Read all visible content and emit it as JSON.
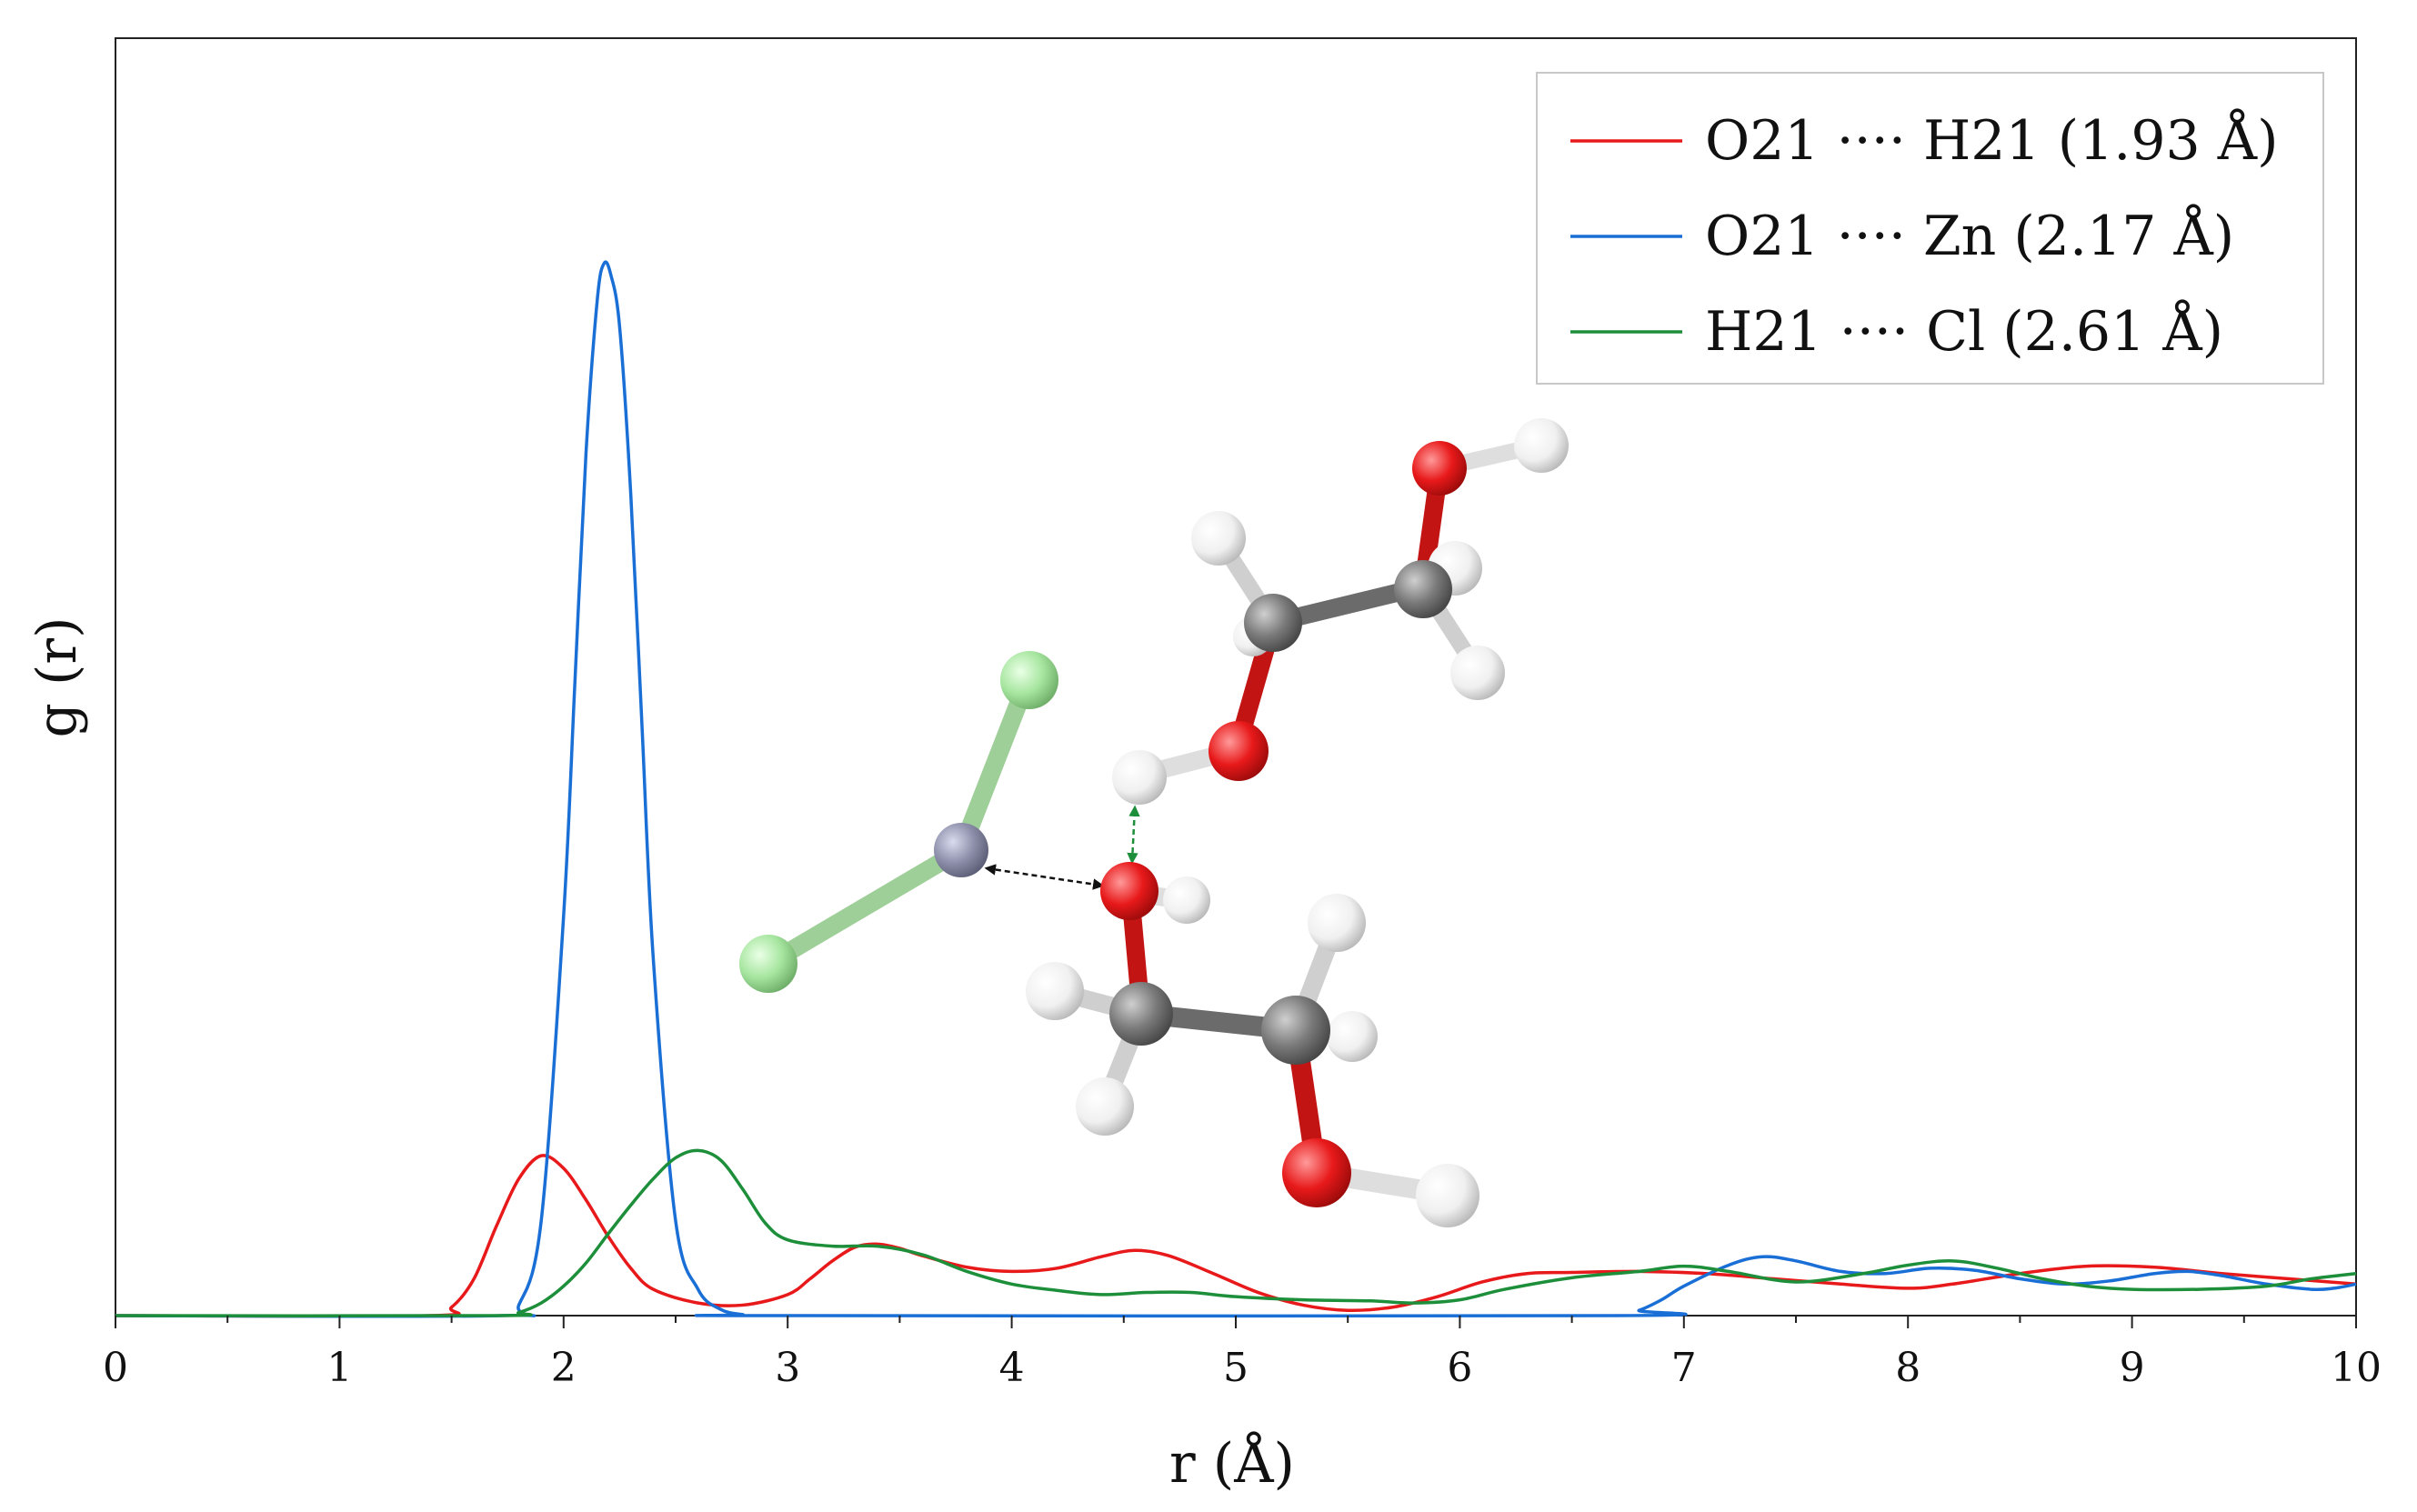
{
  "chart_data": {
    "type": "line",
    "title": "",
    "xlabel": "r (Å)",
    "ylabel": "g (r)",
    "xlim": [
      0,
      10
    ],
    "ylim": [
      0,
      1.0
    ],
    "x_ticks": [
      "0",
      "1",
      "2",
      "3",
      "4",
      "5",
      "6",
      "7",
      "8",
      "9",
      "10"
    ],
    "y_ticks_shown": false,
    "grid": false,
    "legend_position": "top-right",
    "series": [
      {
        "name": "O21 ···· H21 (1.93 Å)",
        "color": "#e8191a",
        "points": [
          [
            0,
            0
          ],
          [
            1.4,
            0
          ],
          [
            1.5,
            0.008
          ],
          [
            1.6,
            0.035
          ],
          [
            1.7,
            0.085
          ],
          [
            1.8,
            0.13
          ],
          [
            1.9,
            0.152
          ],
          [
            2.0,
            0.14
          ],
          [
            2.1,
            0.11
          ],
          [
            2.2,
            0.075
          ],
          [
            2.3,
            0.045
          ],
          [
            2.4,
            0.025
          ],
          [
            2.6,
            0.012
          ],
          [
            2.8,
            0.01
          ],
          [
            3.0,
            0.02
          ],
          [
            3.1,
            0.035
          ],
          [
            3.2,
            0.052
          ],
          [
            3.3,
            0.065
          ],
          [
            3.4,
            0.068
          ],
          [
            3.5,
            0.064
          ],
          [
            3.6,
            0.057
          ],
          [
            3.8,
            0.046
          ],
          [
            4.0,
            0.042
          ],
          [
            4.2,
            0.045
          ],
          [
            4.4,
            0.056
          ],
          [
            4.55,
            0.062
          ],
          [
            4.7,
            0.057
          ],
          [
            4.9,
            0.04
          ],
          [
            5.1,
            0.022
          ],
          [
            5.3,
            0.01
          ],
          [
            5.5,
            0.005
          ],
          [
            5.7,
            0.008
          ],
          [
            5.9,
            0.018
          ],
          [
            6.1,
            0.032
          ],
          [
            6.3,
            0.04
          ],
          [
            6.5,
            0.041
          ],
          [
            6.8,
            0.042
          ],
          [
            7.1,
            0.04
          ],
          [
            7.4,
            0.035
          ],
          [
            7.7,
            0.03
          ],
          [
            8.0,
            0.026
          ],
          [
            8.2,
            0.03
          ],
          [
            8.5,
            0.04
          ],
          [
            8.8,
            0.047
          ],
          [
            9.1,
            0.046
          ],
          [
            9.4,
            0.04
          ],
          [
            9.7,
            0.035
          ],
          [
            10,
            0.03
          ]
        ]
      },
      {
        "name": "O21 ···· Zn (2.17 Å)",
        "color": "#1a6fd6",
        "points": [
          [
            0,
            0
          ],
          [
            1.72,
            0
          ],
          [
            1.8,
            0.01
          ],
          [
            1.9,
            0.09
          ],
          [
            2.0,
            0.38
          ],
          [
            2.05,
            0.6
          ],
          [
            2.1,
            0.82
          ],
          [
            2.15,
            0.965
          ],
          [
            2.18,
            1.0
          ],
          [
            2.21,
            0.99
          ],
          [
            2.25,
            0.94
          ],
          [
            2.3,
            0.78
          ],
          [
            2.35,
            0.56
          ],
          [
            2.4,
            0.34
          ],
          [
            2.5,
            0.09
          ],
          [
            2.6,
            0.025
          ],
          [
            2.7,
            0.006
          ],
          [
            2.8,
            0.001
          ],
          [
            2.9,
            0
          ],
          [
            6.7,
            0
          ],
          [
            6.8,
            0.005
          ],
          [
            6.9,
            0.015
          ],
          [
            7.0,
            0.028
          ],
          [
            7.2,
            0.048
          ],
          [
            7.35,
            0.056
          ],
          [
            7.5,
            0.052
          ],
          [
            7.7,
            0.042
          ],
          [
            7.9,
            0.04
          ],
          [
            8.1,
            0.045
          ],
          [
            8.3,
            0.043
          ],
          [
            8.5,
            0.035
          ],
          [
            8.7,
            0.03
          ],
          [
            8.9,
            0.033
          ],
          [
            9.1,
            0.04
          ],
          [
            9.25,
            0.042
          ],
          [
            9.4,
            0.038
          ],
          [
            9.6,
            0.03
          ],
          [
            9.8,
            0.025
          ],
          [
            9.9,
            0.026
          ],
          [
            10,
            0.03
          ]
        ]
      },
      {
        "name": "H21 ···· Cl (2.61 Å)",
        "color": "#1d8f3a",
        "points": [
          [
            0,
            0
          ],
          [
            1.7,
            0
          ],
          [
            1.8,
            0.003
          ],
          [
            1.9,
            0.012
          ],
          [
            2.0,
            0.028
          ],
          [
            2.1,
            0.05
          ],
          [
            2.2,
            0.078
          ],
          [
            2.3,
            0.105
          ],
          [
            2.4,
            0.13
          ],
          [
            2.5,
            0.15
          ],
          [
            2.6,
            0.157
          ],
          [
            2.7,
            0.148
          ],
          [
            2.8,
            0.12
          ],
          [
            2.9,
            0.088
          ],
          [
            3.0,
            0.072
          ],
          [
            3.2,
            0.066
          ],
          [
            3.4,
            0.066
          ],
          [
            3.6,
            0.058
          ],
          [
            3.8,
            0.042
          ],
          [
            4.0,
            0.03
          ],
          [
            4.2,
            0.024
          ],
          [
            4.4,
            0.02
          ],
          [
            4.6,
            0.022
          ],
          [
            4.8,
            0.022
          ],
          [
            5.0,
            0.018
          ],
          [
            5.3,
            0.015
          ],
          [
            5.6,
            0.014
          ],
          [
            5.8,
            0.012
          ],
          [
            6.0,
            0.015
          ],
          [
            6.2,
            0.025
          ],
          [
            6.5,
            0.036
          ],
          [
            6.8,
            0.042
          ],
          [
            7.0,
            0.047
          ],
          [
            7.2,
            0.042
          ],
          [
            7.5,
            0.032
          ],
          [
            7.8,
            0.04
          ],
          [
            8.0,
            0.048
          ],
          [
            8.2,
            0.052
          ],
          [
            8.4,
            0.045
          ],
          [
            8.6,
            0.035
          ],
          [
            8.8,
            0.028
          ],
          [
            9.0,
            0.025
          ],
          [
            9.3,
            0.025
          ],
          [
            9.6,
            0.028
          ],
          [
            9.8,
            0.035
          ],
          [
            10,
            0.04
          ]
        ]
      }
    ]
  },
  "inset": {
    "description_free": true,
    "atoms": {
      "chlorine_color": "#a7e6a0",
      "zinc_color": "#8e90ab",
      "oxygen_color": "#e8191a",
      "carbon_color": "#7a7a7a",
      "hydrogen_color": "#f2f2f2"
    },
    "zn_o_link_color": "#111111",
    "h_bond_link_color": "#1d8f3a"
  }
}
